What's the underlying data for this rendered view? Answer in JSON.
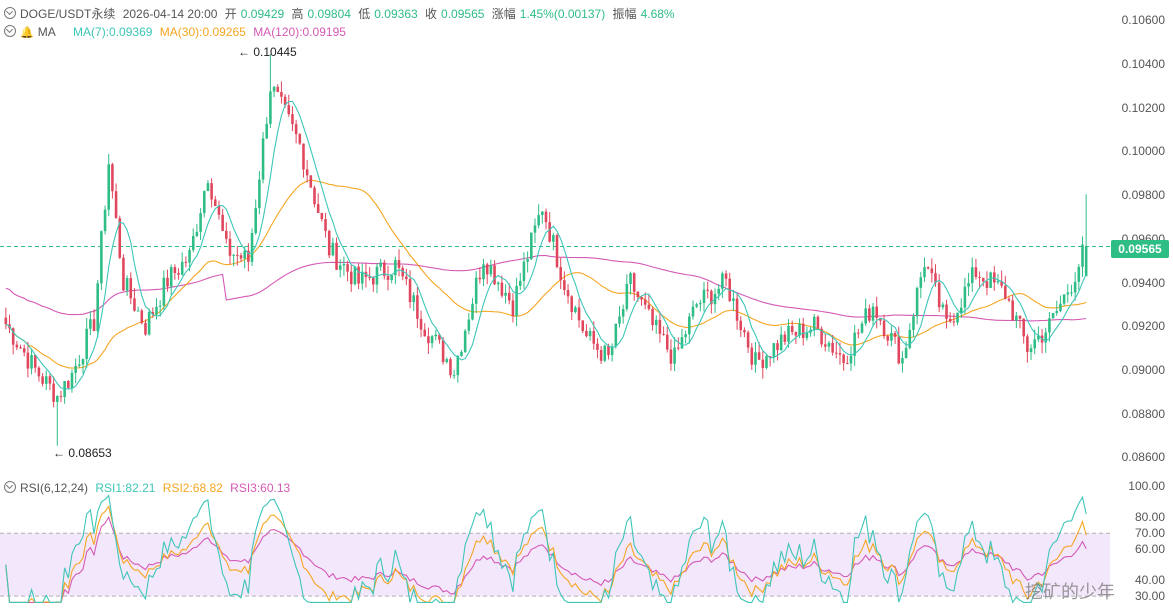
{
  "header": {
    "symbol": "DOGE/USDT永续",
    "datetime": "2026-04-14 20:00",
    "open_label": "开",
    "open": "0.09429",
    "high_label": "高",
    "high": "0.09804",
    "low_label": "低",
    "low": "0.09363",
    "close_label": "收",
    "close": "0.09565",
    "change_label": "涨幅",
    "change": "1.45%(0.00137)",
    "amp_label": "振幅",
    "amp": "4.68%"
  },
  "ma_header": {
    "label": "MA",
    "ma7": "MA(7):0.09369",
    "ma30": "MA(30):0.09265",
    "ma120": "MA(120):0.09195"
  },
  "rsi_header": {
    "label": "RSI(6,12,24)",
    "rsi1": "RSI1:82.21",
    "rsi2": "RSI2:68.82",
    "rsi3": "RSI3:60.13"
  },
  "price_axis": {
    "ticks": [
      "0.10600",
      "0.10400",
      "0.10200",
      "0.10000",
      "0.09800",
      "0.09600",
      "0.09400",
      "0.09200",
      "0.09000",
      "0.08800",
      "0.08600"
    ]
  },
  "rsi_axis": {
    "ticks": [
      "100.00",
      "80.00",
      "70.00",
      "60.00",
      "40.00",
      "30.00"
    ]
  },
  "annotations": {
    "high": "0.10445",
    "low": "0.08653",
    "last_price": "0.09565"
  },
  "watermark": "挖矿的少年",
  "colors": {
    "up": "#2ebd85",
    "down": "#e0475d",
    "ma7": "#3ec6b8",
    "ma30": "#f5a623",
    "ma120": "#d45ab6",
    "rsi_band": "#f3e7fb"
  },
  "chart_data": {
    "type": "candlestick",
    "ylim": [
      0.0856,
      0.1062
    ],
    "rsi_ylim": [
      25,
      100
    ],
    "rsi_levels": [
      30,
      70
    ],
    "last_price": 0.09565,
    "anchors": [
      [
        0,
        0.0921
      ],
      [
        8,
        0.09
      ],
      [
        14,
        0.0888
      ],
      [
        18,
        0.0898
      ],
      [
        24,
        0.0922
      ],
      [
        28,
        0.0995
      ],
      [
        32,
        0.094
      ],
      [
        38,
        0.092
      ],
      [
        44,
        0.0941
      ],
      [
        50,
        0.0952
      ],
      [
        55,
        0.099
      ],
      [
        60,
        0.0955
      ],
      [
        66,
        0.095
      ],
      [
        72,
        0.103
      ],
      [
        80,
        0.1003
      ],
      [
        88,
        0.0955
      ],
      [
        96,
        0.094
      ],
      [
        106,
        0.0948
      ],
      [
        114,
        0.092
      ],
      [
        122,
        0.09
      ],
      [
        130,
        0.0952
      ],
      [
        138,
        0.093
      ],
      [
        146,
        0.0975
      ],
      [
        152,
        0.094
      ],
      [
        158,
        0.0915
      ],
      [
        164,
        0.0905
      ],
      [
        170,
        0.094
      ],
      [
        176,
        0.092
      ],
      [
        182,
        0.0905
      ],
      [
        188,
        0.093
      ],
      [
        196,
        0.094
      ],
      [
        204,
        0.0903
      ],
      [
        212,
        0.0915
      ],
      [
        220,
        0.092
      ],
      [
        228,
        0.0905
      ],
      [
        236,
        0.093
      ],
      [
        244,
        0.0905
      ],
      [
        250,
        0.095
      ],
      [
        256,
        0.092
      ],
      [
        264,
        0.0945
      ],
      [
        272,
        0.0935
      ],
      [
        278,
        0.091
      ],
      [
        284,
        0.092
      ],
      [
        290,
        0.094
      ],
      [
        294,
        0.0957
      ]
    ]
  }
}
